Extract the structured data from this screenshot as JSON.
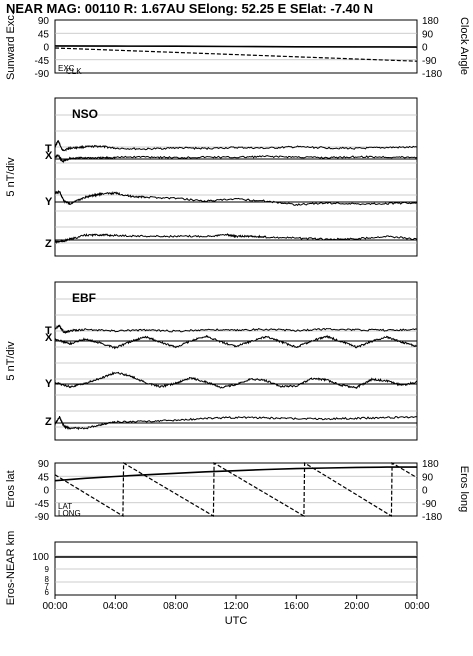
{
  "header": {
    "title": "NEAR MAG: 00110  R: 1.67AU  SElong:   52.25 E  SElat:   -7.40 N"
  },
  "chart_data": [
    {
      "type": "line",
      "panel": "orientation",
      "ylabel_left": "Sunward Exc.",
      "ylabel_right": "Clock Angle",
      "yticks_left": [
        "90",
        "45",
        "0",
        "-45",
        "-90"
      ],
      "yticks_right": [
        "180",
        "90",
        "0",
        "-90",
        "-180"
      ],
      "ylim_left": [
        -90,
        90
      ],
      "ylim_right": [
        -180,
        180
      ],
      "x_hours": [
        0,
        24
      ],
      "series": [
        {
          "name": "EXC",
          "style": "solid",
          "axis": "left",
          "x": [
            0,
            4,
            8,
            12,
            16,
            20,
            24
          ],
          "y": [
            2,
            1.5,
            1,
            0,
            -1,
            -1.5,
            -2
          ]
        },
        {
          "name": "CLK",
          "style": "dashed",
          "axis": "right",
          "x": [
            0,
            24
          ],
          "y": [
            -10,
            -100
          ]
        }
      ]
    },
    {
      "type": "line",
      "panel": "NSO",
      "label": "NSO",
      "ylabel": "5 nT/div",
      "x_hours": [
        0,
        24
      ],
      "components": [
        "T",
        "X",
        "Y",
        "Z"
      ],
      "series": [
        {
          "name": "T",
          "x": [
            0,
            0.2,
            0.5,
            1,
            2,
            3,
            4,
            6,
            8,
            10,
            12,
            14,
            16,
            18,
            20,
            22,
            24
          ],
          "y": [
            1.5,
            3.5,
            0.5,
            1.2,
            1.6,
            1.8,
            1.2,
            0.9,
            1.3,
            1.1,
            1.4,
            1.2,
            1.6,
            1.3,
            1.1,
            1.4,
            1.5
          ]
        },
        {
          "name": "X",
          "x": [
            0,
            0.2,
            0.5,
            1,
            2,
            3,
            4,
            6,
            8,
            10,
            12,
            14,
            16,
            18,
            20,
            22,
            24
          ],
          "y": [
            0.5,
            1.2,
            -0.8,
            0.2,
            0.4,
            0.3,
            0.5,
            0.7,
            0.4,
            0.6,
            0.5,
            0.8,
            0.6,
            0.4,
            0.7,
            0.6,
            0.5
          ]
        },
        {
          "name": "Y",
          "x": [
            0,
            0.3,
            0.6,
            1,
            2,
            2.5,
            3,
            4,
            5,
            6,
            8,
            10,
            12,
            14,
            16,
            18,
            20,
            22,
            24
          ],
          "y": [
            2.8,
            3.2,
            0.3,
            -0.6,
            1.5,
            2,
            2.5,
            2.8,
            1.8,
            1.5,
            1.2,
            0.3,
            0.9,
            0.3,
            -0.8,
            -0.3,
            -0.6,
            -0.5,
            -0.2
          ]
        },
        {
          "name": "Z",
          "x": [
            0,
            0.5,
            1,
            2,
            3,
            4,
            6,
            8,
            10,
            11.5,
            12,
            13,
            14,
            16,
            18,
            20,
            22,
            24
          ],
          "y": [
            -0.6,
            -0.4,
            0.2,
            1.5,
            1.6,
            1.4,
            1.2,
            1.1,
            1.2,
            1.6,
            1.1,
            1.2,
            0.9,
            0.6,
            0.2,
            0.4,
            1.2,
            0.2
          ]
        }
      ]
    },
    {
      "type": "line",
      "panel": "EBF",
      "label": "EBF",
      "ylabel": "5 nT/div",
      "x_hours": [
        0,
        24
      ],
      "components": [
        "T",
        "X",
        "Y",
        "Z"
      ],
      "series": [
        {
          "name": "T",
          "x": [
            0,
            0.3,
            0.6,
            1,
            2,
            4,
            6,
            8,
            10,
            12,
            14,
            16,
            18,
            20,
            22,
            24
          ],
          "y": [
            1.5,
            2.4,
            0.4,
            1,
            1.3,
            0.9,
            1.2,
            0.8,
            1.3,
            1.1,
            1.4,
            1,
            1.5,
            1.2,
            1.1,
            1.4
          ]
        },
        {
          "name": "X",
          "x": [
            0,
            1,
            2,
            3,
            4,
            5,
            6,
            7,
            8,
            9,
            10,
            11,
            12,
            13,
            14,
            15,
            16,
            17,
            18,
            19,
            20,
            21,
            22,
            23,
            24
          ],
          "y": [
            0.5,
            -0.8,
            0.6,
            -0.6,
            -2,
            -0.2,
            1.2,
            -0.3,
            -1.8,
            0,
            1.4,
            -0.2,
            -1.6,
            -0.1,
            1.3,
            -0.3,
            -1.8,
            0,
            1.4,
            -0.2,
            -1.8,
            -0.1,
            1.2,
            -0.3,
            -1.6
          ]
        },
        {
          "name": "Y",
          "x": [
            0,
            1,
            2,
            3,
            4,
            5,
            6,
            7,
            8,
            9,
            10,
            11,
            12,
            13,
            14,
            15,
            16,
            17,
            18,
            19,
            20,
            21,
            22,
            23,
            24
          ],
          "y": [
            0.4,
            -0.8,
            0.2,
            1.6,
            3.4,
            2.4,
            0.4,
            -0.8,
            0.2,
            1.8,
            0.6,
            -1,
            -0.2,
            1.5,
            1.0,
            -0.8,
            -0.6,
            1.6,
            1.2,
            -0.4,
            -1.0,
            1.4,
            0.9,
            -0.4,
            0.6
          ]
        },
        {
          "name": "Z",
          "x": [
            0,
            0.3,
            0.6,
            1,
            2,
            3,
            4,
            6,
            8,
            10,
            12,
            14,
            16,
            18,
            20,
            22,
            24
          ],
          "y": [
            -0.2,
            1.8,
            -1.0,
            -1.5,
            -1.6,
            -0.5,
            0.3,
            0.5,
            0.8,
            1.4,
            1.6,
            1.5,
            1.3,
            1.2,
            1.4,
            1.6,
            1.8
          ]
        }
      ]
    },
    {
      "type": "line",
      "panel": "eros-position",
      "ylabel_left": "Eros lat",
      "ylabel_right": "Eros long",
      "yticks_left": [
        "90",
        "45",
        "0",
        "-45",
        "-90"
      ],
      "yticks_right": [
        "180",
        "90",
        "0",
        "-90",
        "-180"
      ],
      "ylim_left": [
        -90,
        90
      ],
      "ylim_right": [
        -180,
        180
      ],
      "x_hours": [
        0,
        24
      ],
      "series": [
        {
          "name": "LAT",
          "style": "solid",
          "axis": "left",
          "x": [
            0,
            2,
            4,
            6,
            8,
            10,
            12,
            14,
            16,
            18,
            20,
            22,
            24
          ],
          "y": [
            30,
            38,
            44,
            50,
            55,
            60,
            64,
            68,
            71,
            73,
            75,
            76,
            76
          ]
        },
        {
          "name": "LONG",
          "style": "dashed",
          "axis": "right",
          "x": [
            0,
            4.5,
            4.55,
            10.5,
            10.55,
            16.5,
            16.55,
            22.3,
            22.35,
            24
          ],
          "y": [
            100,
            -180,
            180,
            -180,
            180,
            -180,
            180,
            -180,
            180,
            80
          ]
        }
      ]
    },
    {
      "type": "line",
      "panel": "range",
      "ylabel": "Eros-NEAR km",
      "yticks": [
        "100",
        "9",
        "8",
        "7",
        "6"
      ],
      "x_hours": [
        0,
        24
      ],
      "series": [
        {
          "name": "range",
          "style": "solid",
          "x": [
            0,
            24
          ],
          "y": [
            100,
            100
          ]
        }
      ]
    }
  ],
  "x_axis": {
    "ticks": [
      "00:00",
      "04:00",
      "08:00",
      "12:00",
      "16:00",
      "20:00",
      "00:00"
    ],
    "label": "UTC"
  }
}
